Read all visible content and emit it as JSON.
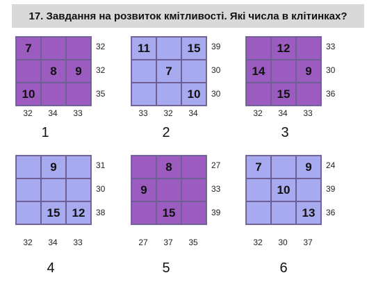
{
  "title": "17. Завдання на розвиток кмітливості. Які числа в клітинках?",
  "colors": {
    "purple": "#9b5bbf",
    "blue": "#a8aaf0"
  },
  "puzzles": [
    {
      "label": "1",
      "color": "purple",
      "cells": [
        "7",
        "",
        "",
        "",
        "8",
        "9",
        "10",
        "",
        ""
      ],
      "row_sums": [
        "32",
        "32",
        "35"
      ],
      "col_sums": [
        "32",
        "34",
        "33"
      ]
    },
    {
      "label": "2",
      "color": "blue",
      "cells": [
        "11",
        "",
        "15",
        "",
        "7",
        "",
        "",
        "",
        "10"
      ],
      "row_sums": [
        "39",
        "30",
        "30"
      ],
      "col_sums": [
        "33",
        "32",
        "34"
      ]
    },
    {
      "label": "3",
      "color": "purple",
      "cells": [
        "",
        "12",
        "",
        "14",
        "",
        "9",
        "",
        "15",
        ""
      ],
      "row_sums": [
        "33",
        "30",
        "36"
      ],
      "col_sums": [
        "32",
        "34",
        "33"
      ]
    },
    {
      "label": "4",
      "color": "blue",
      "cells": [
        "",
        "9",
        "",
        "",
        "",
        "",
        "",
        "15",
        "12"
      ],
      "row_sums": [
        "31",
        "30",
        "38"
      ],
      "col_sums": [
        "32",
        "34",
        "33"
      ]
    },
    {
      "label": "5",
      "color": "purple",
      "cells": [
        "",
        "8",
        "",
        "9",
        "",
        "",
        "",
        "15",
        ""
      ],
      "row_sums": [
        "27",
        "33",
        "39"
      ],
      "col_sums": [
        "27",
        "37",
        "35"
      ]
    },
    {
      "label": "6",
      "color": "blue",
      "cells": [
        "7",
        "",
        "9",
        "",
        "10",
        "",
        "",
        "",
        "13"
      ],
      "row_sums": [
        "24",
        "39",
        "36"
      ],
      "col_sums": [
        "32",
        "30",
        "37"
      ]
    }
  ]
}
